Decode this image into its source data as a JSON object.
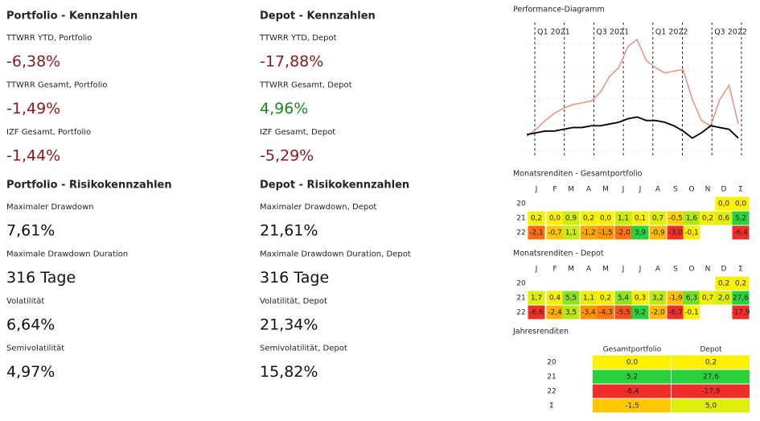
{
  "columns": [
    [
      {
        "title": "Portfolio - Kennzahlen",
        "items": [
          {
            "label": "TTWRR YTD, Portfolio",
            "value": "-6,38%",
            "color": "#8b1a1a"
          },
          {
            "label": "TTWRR Gesamt, Portfolio",
            "value": "-1,49%",
            "color": "#8b1a1a"
          },
          {
            "label": "IZF Gesamt, Portfolio",
            "value": "-1,44%",
            "color": "#8b1a1a"
          }
        ]
      },
      {
        "title": "Portfolio - Risikokennzahlen",
        "items": [
          {
            "label": "Maximaler Drawdown",
            "value": "7,61%",
            "color": "#111111"
          },
          {
            "label": "Maximale Drawdown Duration",
            "value": "316 Tage",
            "color": "#111111"
          },
          {
            "label": "Volatilität",
            "value": "6,64%",
            "color": "#111111"
          },
          {
            "label": "Semivolatilität",
            "value": "4,97%",
            "color": "#111111"
          }
        ]
      }
    ],
    [
      {
        "title": "Depot - Kennzahlen",
        "items": [
          {
            "label": "TTWRR YTD, Depot",
            "value": "-17,88%",
            "color": "#8b1a1a"
          },
          {
            "label": "TTWRR Gesamt, Depot",
            "value": "4,96%",
            "color": "#1a8a1a"
          },
          {
            "label": "IZF Gesamt, Depot",
            "value": "-5,29%",
            "color": "#8b1a1a"
          }
        ]
      },
      {
        "title": "Depot - Risikokennzahlen",
        "items": [
          {
            "label": "Maximaler Drawdown, Depot",
            "value": "21,61%",
            "color": "#111111"
          },
          {
            "label": "Maximale Drawdown Duration, Depot",
            "value": "316 Tage",
            "color": "#111111"
          },
          {
            "label": "Volatilität, Depot",
            "value": "21,34%",
            "color": "#111111"
          },
          {
            "label": "Semivolatilität, Depot",
            "value": "15,82%",
            "color": "#111111"
          }
        ]
      }
    ]
  ],
  "performance": {
    "title": "Performance-Diagramm",
    "quarters": [
      "Q1 2021",
      "Q3 2021",
      "Q1 2022",
      "Q3 2022"
    ],
    "ylim": [
      -15,
      65
    ],
    "series": [
      {
        "color": "#e8927c",
        "values": [
          -1,
          3,
          8,
          12,
          15,
          17,
          18,
          19,
          24,
          33,
          38,
          50,
          54,
          42,
          38,
          35,
          36,
          37,
          20,
          8,
          5,
          20,
          28,
          6
        ]
      },
      {
        "color": "#000000",
        "values": [
          0,
          1,
          2,
          2,
          3,
          4,
          4,
          5,
          5,
          6,
          7,
          9,
          10,
          8,
          8,
          7,
          5,
          2,
          -2,
          1,
          5,
          4,
          3,
          -2
        ]
      }
    ]
  },
  "monthly": [
    {
      "title": "Monatsrenditen - Gesamtportfolio",
      "months": [
        "J",
        "F",
        "M",
        "A",
        "M",
        "J",
        "J",
        "A",
        "S",
        "O",
        "N",
        "D",
        "Σ"
      ],
      "rows": [
        {
          "label": "20",
          "cells": [
            null,
            null,
            null,
            null,
            null,
            null,
            null,
            null,
            null,
            null,
            null,
            "0,0",
            "0,0"
          ]
        },
        {
          "label": "21",
          "cells": [
            "0,2",
            "0,0",
            "0,9",
            "0,2",
            "0,0",
            "1,1",
            "0,1",
            "0,7",
            "-0,5",
            "1,6",
            "0,2",
            "0,6",
            "5,2"
          ]
        },
        {
          "label": "22",
          "cells": [
            "-2,1",
            "-0,7",
            "1,1",
            "-1,2",
            "-1,5",
            "-2,0",
            "3,9",
            "-0,9",
            "-3,0",
            "-0,1",
            null,
            null,
            "-6,4"
          ]
        }
      ]
    },
    {
      "title": "Monatsrenditen - Depot",
      "months": [
        "J",
        "F",
        "M",
        "A",
        "M",
        "J",
        "J",
        "A",
        "S",
        "O",
        "N",
        "D",
        "Σ"
      ],
      "rows": [
        {
          "label": "20",
          "cells": [
            null,
            null,
            null,
            null,
            null,
            null,
            null,
            null,
            null,
            null,
            null,
            "0,2",
            "0,2"
          ]
        },
        {
          "label": "21",
          "cells": [
            "1,7",
            "0,4",
            "5,5",
            "1,1",
            "0,2",
            "5,4",
            "0,3",
            "3,2",
            "-1,9",
            "6,3",
            "0,7",
            "2,0",
            "27,6"
          ]
        },
        {
          "label": "22",
          "cells": [
            "-6,6",
            "-2,4",
            "3,5",
            "-3,4",
            "-4,3",
            "-5,5",
            "9,2",
            "-2,0",
            "-6,7",
            "-0,1",
            null,
            null,
            "-17,9"
          ]
        }
      ]
    }
  ],
  "yearly": {
    "title": "Jahresrenditen",
    "columns": [
      "Gesamtportfolio",
      "Depot"
    ],
    "rows": [
      {
        "label": "20",
        "cells": [
          "0,0",
          "0,2"
        ]
      },
      {
        "label": "21",
        "cells": [
          "5,2",
          "27,6"
        ]
      },
      {
        "label": "22",
        "cells": [
          "-6,4",
          "-17,9"
        ]
      },
      {
        "label": "Σ",
        "cells": [
          "-1,5",
          "5,0"
        ]
      }
    ]
  }
}
